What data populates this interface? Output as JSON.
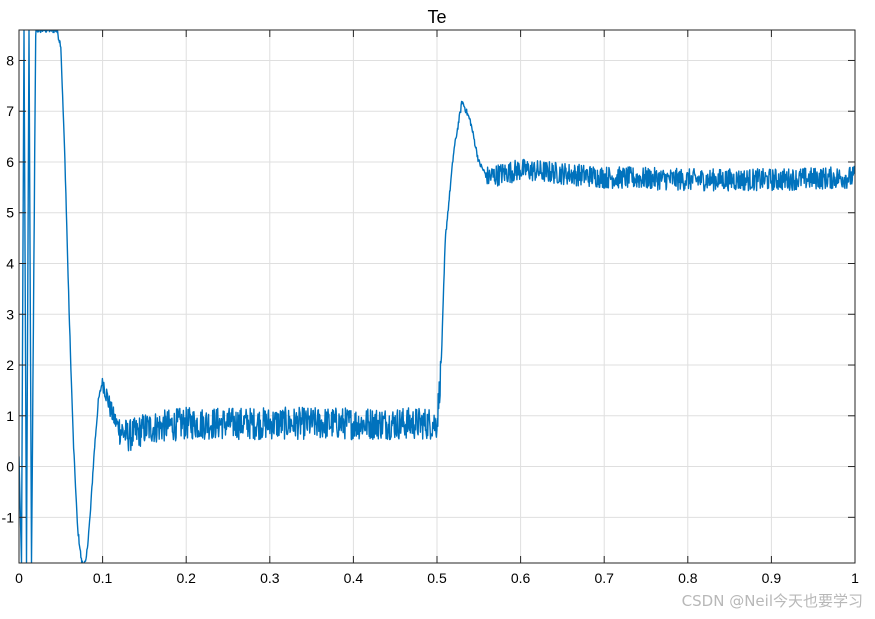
{
  "chart_data": {
    "type": "line",
    "title": "Te",
    "xlabel": "",
    "ylabel": "",
    "xlim": [
      0,
      1
    ],
    "ylim": [
      -1.9,
      8.6
    ],
    "xticks": [
      "0",
      "0.1",
      "0.2",
      "0.3",
      "0.4",
      "0.5",
      "0.6",
      "0.7",
      "0.8",
      "0.9",
      "1"
    ],
    "yticks": [
      "-1",
      "0",
      "1",
      "2",
      "3",
      "4",
      "5",
      "6",
      "7",
      "8"
    ],
    "grid": true,
    "line_color": "#0072BD",
    "series": [
      {
        "x": [
          0,
          0.003,
          0.006,
          0.009,
          0.012,
          0.015,
          0.02,
          0.025,
          0.03,
          0.035,
          0.04,
          0.045,
          0.05,
          0.055,
          0.06,
          0.065,
          0.07,
          0.075,
          0.08,
          0.085,
          0.09,
          0.095,
          0.1,
          0.105,
          0.11,
          0.115,
          0.12,
          0.13,
          0.14,
          0.15,
          0.2,
          0.25,
          0.3,
          0.35,
          0.4,
          0.45,
          0.5,
          0.505,
          0.51,
          0.52,
          0.53,
          0.54,
          0.55,
          0.56,
          0.6,
          0.7,
          0.8,
          0.9,
          1.0
        ],
        "y": [
          0.2,
          -1.9,
          8.6,
          -1.9,
          8.6,
          -1.9,
          8.6,
          8.6,
          8.6,
          8.6,
          8.6,
          8.6,
          8.3,
          6.0,
          3.0,
          0.5,
          -1.2,
          -1.9,
          -1.9,
          -1.0,
          0.3,
          1.3,
          1.7,
          1.4,
          1.1,
          0.9,
          0.75,
          0.6,
          0.65,
          0.75,
          0.85,
          0.85,
          0.85,
          0.85,
          0.85,
          0.85,
          0.85,
          2.0,
          4.5,
          6.2,
          7.2,
          6.8,
          6.0,
          5.7,
          5.85,
          5.7,
          5.65,
          5.65,
          5.7
        ]
      }
    ]
  },
  "watermark": "CSDN @Neil今天也要学习"
}
